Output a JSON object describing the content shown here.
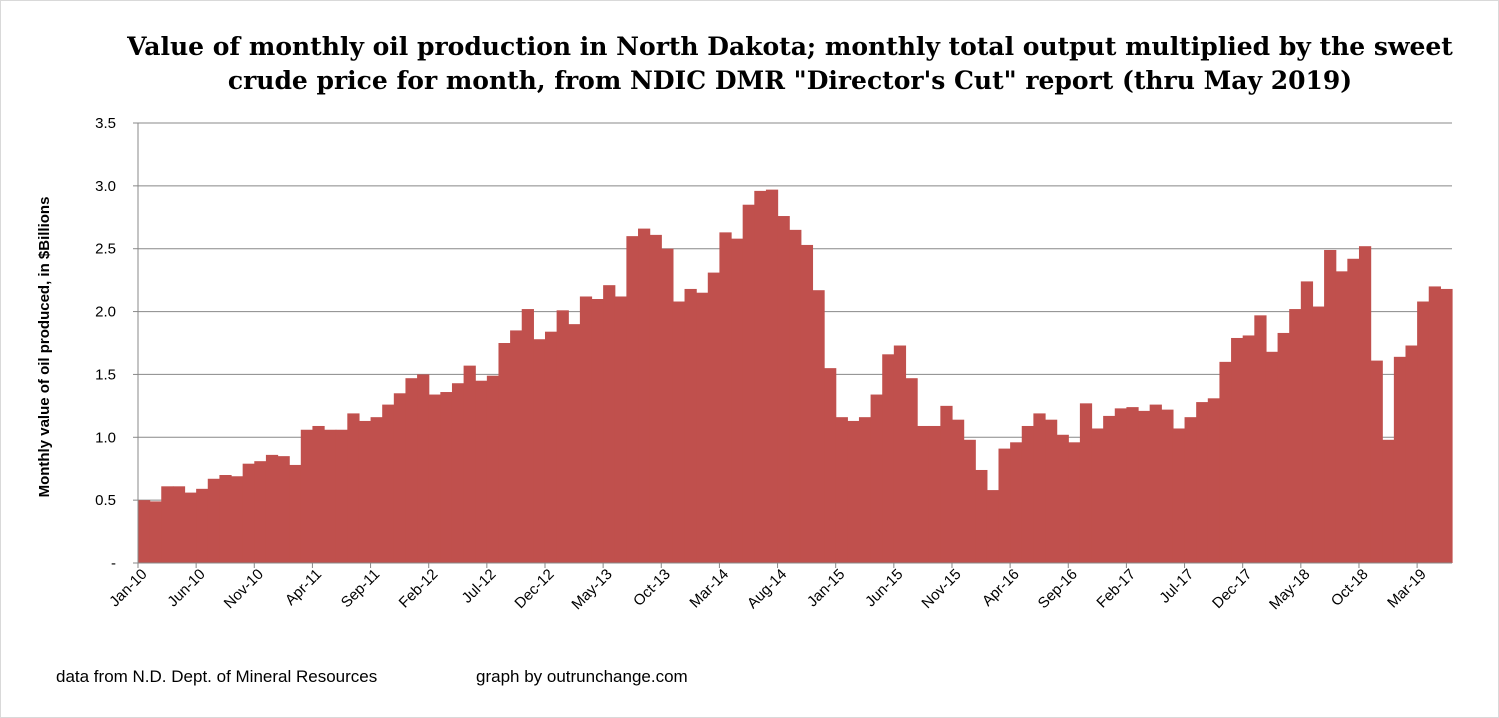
{
  "chart_data": {
    "type": "bar",
    "title_lines": [
      "Value of monthly oil production in North Dakota; monthly total output multiplied by the sweet",
      "crude price for month, from NDIC DMR \"Director's Cut\" report  (thru May 2019)"
    ],
    "ylabel": "Monthly value of oil produced, in $Billions",
    "xlabel": "",
    "ylim": [
      0,
      3.5
    ],
    "y_ticks": [
      "-",
      "0.5",
      "1.0",
      "1.5",
      "2.0",
      "2.5",
      "3.0",
      "3.5"
    ],
    "x_tick_labels": [
      "Jan-10",
      "Jun-10",
      "Nov-10",
      "Apr-11",
      "Sep-11",
      "Feb-12",
      "Jul-12",
      "Dec-12",
      "May-13",
      "Oct-13",
      "Mar-14",
      "Aug-14",
      "Jan-15",
      "Jun-15",
      "Nov-15",
      "Apr-16",
      "Sep-16",
      "Feb-17",
      "Jul-17",
      "Dec-17",
      "May-18",
      "Oct-18",
      "Mar-19"
    ],
    "x_tick_every": 5,
    "start_month": "Jan-10",
    "end_month": "May-19",
    "grid": true,
    "bar_color": "#c0504d",
    "values": [
      0.5,
      0.49,
      0.61,
      0.61,
      0.56,
      0.59,
      0.67,
      0.7,
      0.69,
      0.79,
      0.81,
      0.86,
      0.85,
      0.78,
      1.06,
      1.09,
      1.06,
      1.06,
      1.19,
      1.13,
      1.16,
      1.26,
      1.35,
      1.47,
      1.5,
      1.34,
      1.36,
      1.43,
      1.57,
      1.45,
      1.49,
      1.75,
      1.85,
      2.02,
      1.78,
      1.84,
      2.01,
      1.9,
      2.12,
      2.1,
      2.21,
      2.12,
      2.6,
      2.66,
      2.61,
      2.5,
      2.08,
      2.18,
      2.15,
      2.31,
      2.63,
      2.58,
      2.85,
      2.96,
      2.97,
      2.76,
      2.65,
      2.53,
      2.17,
      1.55,
      1.16,
      1.13,
      1.16,
      1.34,
      1.66,
      1.73,
      1.47,
      1.09,
      1.09,
      1.25,
      1.14,
      0.98,
      0.74,
      0.58,
      0.91,
      0.96,
      1.09,
      1.19,
      1.14,
      1.02,
      0.96,
      1.27,
      1.07,
      1.17,
      1.23,
      1.24,
      1.21,
      1.26,
      1.22,
      1.07,
      1.16,
      1.28,
      1.31,
      1.6,
      1.79,
      1.81,
      1.97,
      1.68,
      1.83,
      2.02,
      2.24,
      2.04,
      2.49,
      2.32,
      2.42,
      2.52,
      1.61,
      0.98,
      1.64,
      1.73,
      2.08,
      2.2,
      2.18
    ]
  },
  "footer": {
    "source": "data from N.D. Dept. of Mineral Resources",
    "credit": "graph by outrunchange.com"
  }
}
